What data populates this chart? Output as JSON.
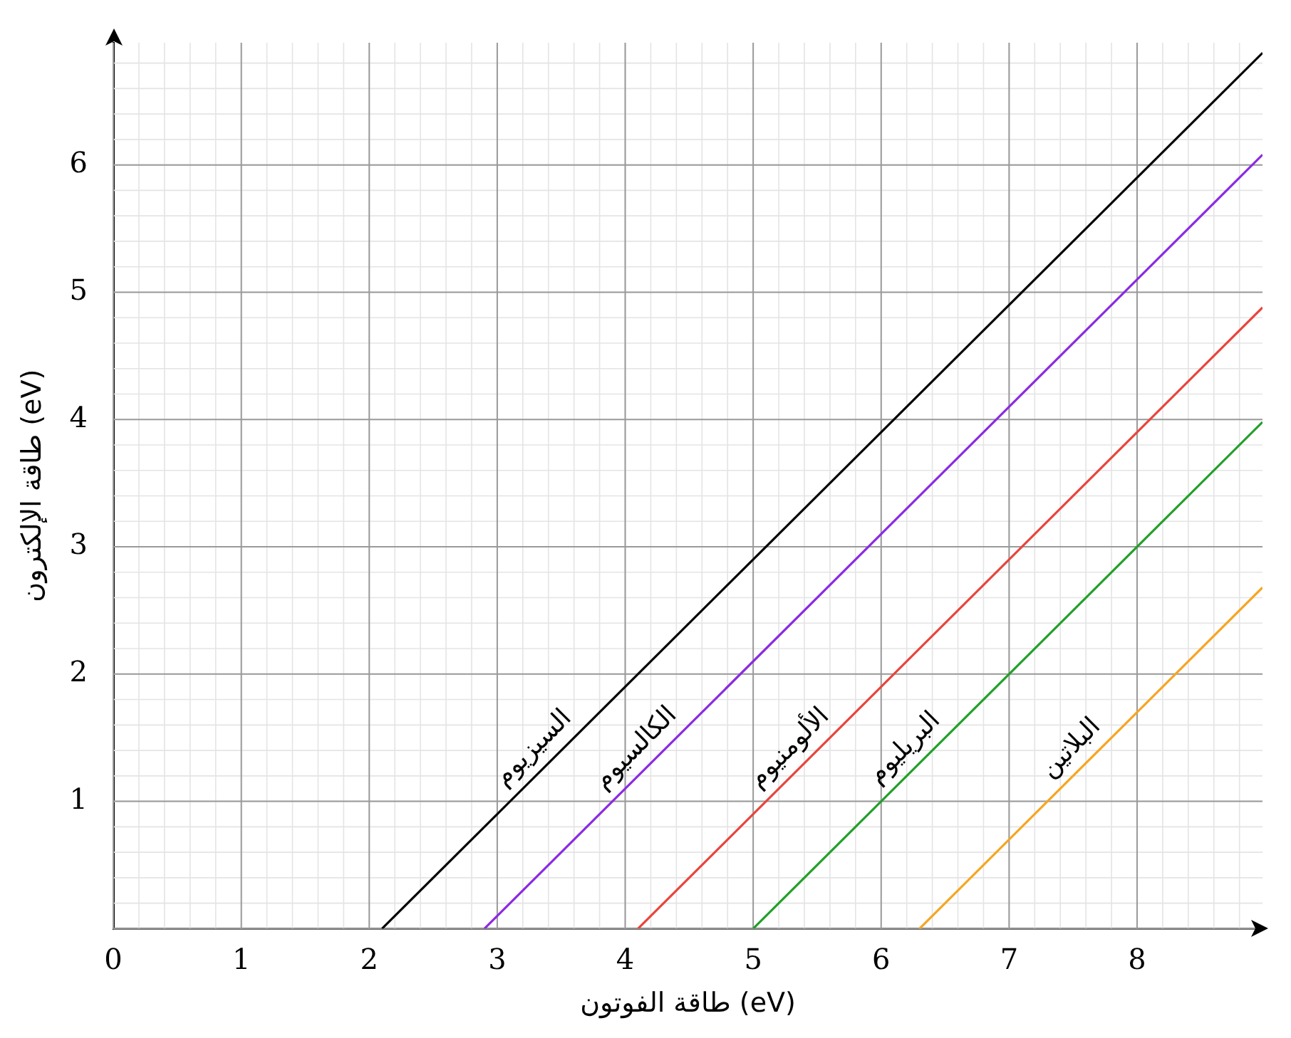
{
  "chart_data": {
    "type": "line",
    "xlabel": "طاقة الفوتون (eV)",
    "ylabel": "طاقة الإلكترون (eV)",
    "xlim": [
      0,
      8.98
    ],
    "ylim": [
      0,
      6.96
    ],
    "xticks": [
      {
        "value": 0,
        "label": "0"
      },
      1,
      2,
      3,
      4,
      5,
      6,
      7,
      8
    ],
    "yticks": [
      {
        "value": 0,
        "label": null
      },
      1,
      2,
      3,
      4,
      5,
      6
    ],
    "grid": true,
    "legend": false,
    "marker": "none",
    "line_style": "solid",
    "series": [
      {
        "name": "السيزيوم",
        "color": "#000000",
        "x": [
          2.1,
          8.98
        ],
        "values": [
          0,
          6.88
        ]
      },
      {
        "name": "الكالسيوم",
        "color": "#8a2be2",
        "x": [
          2.9,
          8.98
        ],
        "values": [
          0,
          6.08
        ]
      },
      {
        "name": "الألومنيوم",
        "color": "#e8453c",
        "x": [
          4.1,
          8.98
        ],
        "values": [
          0,
          4.88
        ]
      },
      {
        "name": "البريليوم",
        "color": "#22a02a",
        "x": [
          5.0,
          8.98
        ],
        "values": [
          0,
          3.98
        ]
      },
      {
        "name": "البلاتين",
        "color": "#f5a623",
        "x": [
          6.3,
          8.98
        ],
        "values": [
          0,
          2.68
        ]
      }
    ]
  }
}
